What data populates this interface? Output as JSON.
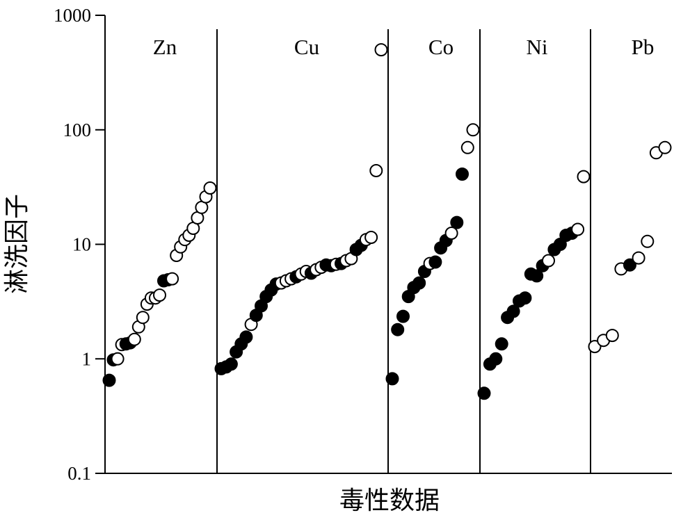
{
  "chart_data": {
    "type": "scatter",
    "xlabel": "毒性数据",
    "ylabel": "淋洗因子",
    "yscale": "log",
    "ylim": [
      0.1,
      1000
    ],
    "yticks": [
      {
        "value": 0.1,
        "label": "0.1"
      },
      {
        "value": 1,
        "label": "1"
      },
      {
        "value": 10,
        "label": "10"
      },
      {
        "value": 100,
        "label": "100"
      },
      {
        "value": 1000,
        "label": "1000"
      }
    ],
    "grid": false,
    "legend": "none",
    "marker_styles": {
      "filled": "#000000",
      "open": "#ffffff"
    },
    "groups": [
      {
        "label": "Zn",
        "points": [
          {
            "y": 0.65,
            "filled": true
          },
          {
            "y": 0.98,
            "filled": true
          },
          {
            "y": 1.0,
            "filled": false
          },
          {
            "y": 1.33,
            "filled": false
          },
          {
            "y": 1.35,
            "filled": true
          },
          {
            "y": 1.38,
            "filled": true
          },
          {
            "y": 1.48,
            "filled": false
          },
          {
            "y": 1.9,
            "filled": false
          },
          {
            "y": 2.3,
            "filled": false
          },
          {
            "y": 3.0,
            "filled": false
          },
          {
            "y": 3.4,
            "filled": false
          },
          {
            "y": 3.4,
            "filled": false
          },
          {
            "y": 3.6,
            "filled": false
          },
          {
            "y": 4.8,
            "filled": true
          },
          {
            "y": 4.9,
            "filled": true
          },
          {
            "y": 5.0,
            "filled": false
          },
          {
            "y": 8.0,
            "filled": false
          },
          {
            "y": 9.5,
            "filled": false
          },
          {
            "y": 11.0,
            "filled": false
          },
          {
            "y": 12.0,
            "filled": false
          },
          {
            "y": 13.8,
            "filled": false
          },
          {
            "y": 17.0,
            "filled": false
          },
          {
            "y": 21.0,
            "filled": false
          },
          {
            "y": 26.0,
            "filled": false
          },
          {
            "y": 31.0,
            "filled": false
          }
        ]
      },
      {
        "label": "Cu",
        "points": [
          {
            "y": 0.82,
            "filled": true
          },
          {
            "y": 0.85,
            "filled": true
          },
          {
            "y": 0.9,
            "filled": true
          },
          {
            "y": 1.15,
            "filled": true
          },
          {
            "y": 1.35,
            "filled": true
          },
          {
            "y": 1.55,
            "filled": true
          },
          {
            "y": 2.0,
            "filled": false
          },
          {
            "y": 2.4,
            "filled": true
          },
          {
            "y": 2.9,
            "filled": true
          },
          {
            "y": 3.5,
            "filled": true
          },
          {
            "y": 4.0,
            "filled": true
          },
          {
            "y": 4.5,
            "filled": true
          },
          {
            "y": 4.6,
            "filled": false
          },
          {
            "y": 4.8,
            "filled": false
          },
          {
            "y": 5.0,
            "filled": false
          },
          {
            "y": 5.2,
            "filled": true
          },
          {
            "y": 5.5,
            "filled": false
          },
          {
            "y": 5.8,
            "filled": false
          },
          {
            "y": 5.6,
            "filled": true
          },
          {
            "y": 6.0,
            "filled": false
          },
          {
            "y": 6.3,
            "filled": false
          },
          {
            "y": 6.6,
            "filled": true
          },
          {
            "y": 6.5,
            "filled": true
          },
          {
            "y": 6.7,
            "filled": false
          },
          {
            "y": 6.8,
            "filled": true
          },
          {
            "y": 7.2,
            "filled": false
          },
          {
            "y": 7.5,
            "filled": false
          },
          {
            "y": 9.0,
            "filled": true
          },
          {
            "y": 9.8,
            "filled": true
          },
          {
            "y": 11.0,
            "filled": false
          },
          {
            "y": 11.5,
            "filled": false
          },
          {
            "y": 44.0,
            "filled": false
          },
          {
            "y": 500.0,
            "filled": false
          }
        ]
      },
      {
        "label": "Co",
        "points": [
          {
            "y": 0.67,
            "filled": true
          },
          {
            "y": 1.8,
            "filled": true
          },
          {
            "y": 2.35,
            "filled": true
          },
          {
            "y": 3.5,
            "filled": true
          },
          {
            "y": 4.2,
            "filled": true
          },
          {
            "y": 4.6,
            "filled": true
          },
          {
            "y": 5.8,
            "filled": true
          },
          {
            "y": 6.8,
            "filled": false
          },
          {
            "y": 7.0,
            "filled": true
          },
          {
            "y": 9.3,
            "filled": true
          },
          {
            "y": 10.8,
            "filled": true
          },
          {
            "y": 12.5,
            "filled": false
          },
          {
            "y": 15.5,
            "filled": true
          },
          {
            "y": 41.0,
            "filled": true
          },
          {
            "y": 70.0,
            "filled": false
          },
          {
            "y": 100.0,
            "filled": false
          }
        ]
      },
      {
        "label": "Ni",
        "points": [
          {
            "y": 0.5,
            "filled": true
          },
          {
            "y": 0.9,
            "filled": true
          },
          {
            "y": 1.0,
            "filled": true
          },
          {
            "y": 1.35,
            "filled": true
          },
          {
            "y": 2.3,
            "filled": true
          },
          {
            "y": 2.6,
            "filled": true
          },
          {
            "y": 3.2,
            "filled": true
          },
          {
            "y": 3.4,
            "filled": true
          },
          {
            "y": 5.5,
            "filled": true
          },
          {
            "y": 5.3,
            "filled": true
          },
          {
            "y": 6.5,
            "filled": true
          },
          {
            "y": 7.2,
            "filled": false
          },
          {
            "y": 9.0,
            "filled": true
          },
          {
            "y": 10.0,
            "filled": true
          },
          {
            "y": 12.0,
            "filled": true
          },
          {
            "y": 12.5,
            "filled": true
          },
          {
            "y": 13.5,
            "filled": false
          },
          {
            "y": 39.0,
            "filled": false
          }
        ]
      },
      {
        "label": "Pb",
        "points": [
          {
            "y": 1.28,
            "filled": false
          },
          {
            "y": 1.45,
            "filled": false
          },
          {
            "y": 1.6,
            "filled": false
          },
          {
            "y": 6.1,
            "filled": false
          },
          {
            "y": 6.6,
            "filled": true
          },
          {
            "y": 7.6,
            "filled": false
          },
          {
            "y": 10.6,
            "filled": false
          },
          {
            "y": 63.0,
            "filled": false
          },
          {
            "y": 70.0,
            "filled": false
          }
        ]
      }
    ]
  }
}
